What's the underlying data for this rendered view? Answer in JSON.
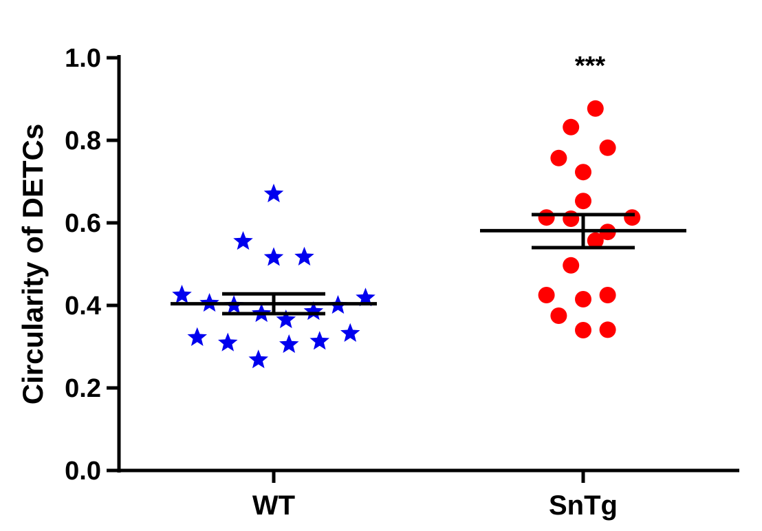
{
  "chart_data": {
    "type": "scatter",
    "ylabel": "Circularity of DETCs",
    "xlabel": "",
    "ylim": [
      0,
      1.0
    ],
    "yticks": [
      "0.0",
      "0.2",
      "0.4",
      "0.6",
      "0.8",
      "1.0"
    ],
    "categories": [
      "WT",
      "SnTg"
    ],
    "grid": false,
    "legend": "none",
    "series": [
      {
        "category": "WT",
        "marker": "star",
        "color": "#0000ee",
        "points": [
          {
            "offset": -0.3,
            "y": 0.425
          },
          {
            "offset": -0.25,
            "y": 0.322
          },
          {
            "offset": -0.21,
            "y": 0.405
          },
          {
            "offset": -0.15,
            "y": 0.309
          },
          {
            "offset": -0.13,
            "y": 0.4
          },
          {
            "offset": -0.1,
            "y": 0.555
          },
          {
            "offset": -0.05,
            "y": 0.268
          },
          {
            "offset": -0.04,
            "y": 0.38
          },
          {
            "offset": 0.0,
            "y": 0.67
          },
          {
            "offset": 0.0,
            "y": 0.516
          },
          {
            "offset": 0.04,
            "y": 0.365
          },
          {
            "offset": 0.05,
            "y": 0.305
          },
          {
            "offset": 0.1,
            "y": 0.517
          },
          {
            "offset": 0.13,
            "y": 0.385
          },
          {
            "offset": 0.15,
            "y": 0.313
          },
          {
            "offset": 0.21,
            "y": 0.4
          },
          {
            "offset": 0.25,
            "y": 0.332
          },
          {
            "offset": 0.3,
            "y": 0.418
          }
        ],
        "mean": 0.404,
        "sem_low": 0.38,
        "sem_high": 0.428
      },
      {
        "category": "SnTg",
        "marker": "circle",
        "color": "#ff0000",
        "points": [
          {
            "offset": 0.04,
            "y": 0.877
          },
          {
            "offset": -0.04,
            "y": 0.832
          },
          {
            "offset": 0.08,
            "y": 0.782
          },
          {
            "offset": -0.08,
            "y": 0.757
          },
          {
            "offset": 0.0,
            "y": 0.723
          },
          {
            "offset": 0.0,
            "y": 0.653
          },
          {
            "offset": -0.12,
            "y": 0.613
          },
          {
            "offset": -0.04,
            "y": 0.61
          },
          {
            "offset": 0.16,
            "y": 0.613
          },
          {
            "offset": 0.08,
            "y": 0.578
          },
          {
            "offset": 0.04,
            "y": 0.557
          },
          {
            "offset": -0.04,
            "y": 0.497
          },
          {
            "offset": -0.12,
            "y": 0.425
          },
          {
            "offset": 0.0,
            "y": 0.415
          },
          {
            "offset": 0.08,
            "y": 0.425
          },
          {
            "offset": -0.08,
            "y": 0.375
          },
          {
            "offset": 0.0,
            "y": 0.34
          },
          {
            "offset": 0.08,
            "y": 0.341
          }
        ],
        "mean": 0.581,
        "sem_low": 0.54,
        "sem_high": 0.62
      }
    ],
    "annotations": [
      {
        "category": "SnTg",
        "text": "***",
        "y": 1.0
      }
    ]
  }
}
